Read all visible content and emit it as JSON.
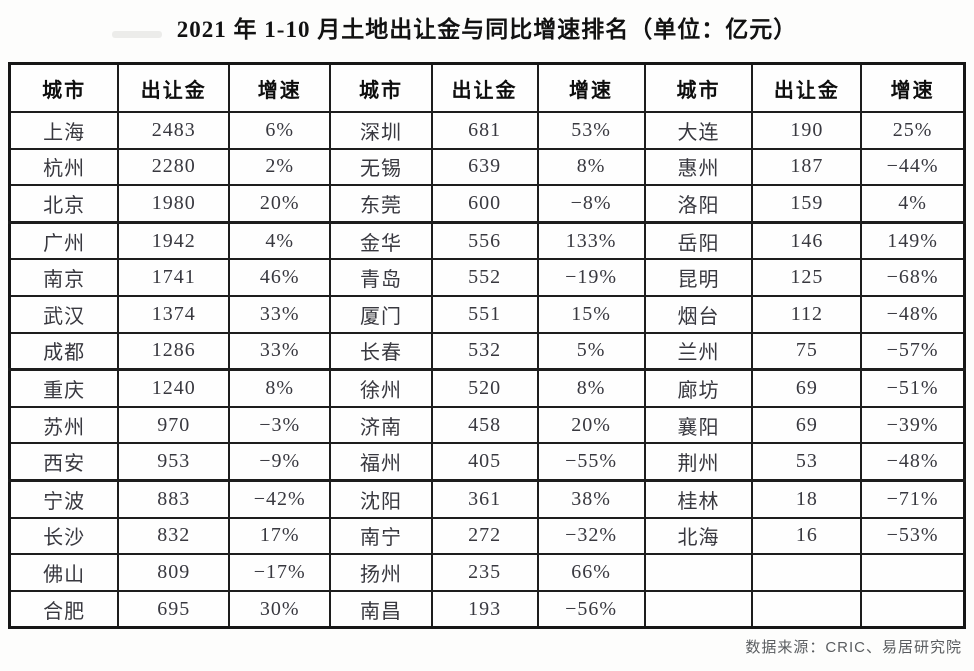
{
  "title": "2021 年 1-10 月土地出让金与同比增速排名（单位：亿元）",
  "source_note": "数据来源：CRIC、易居研究院",
  "table": {
    "headers": [
      "城市",
      "出让金",
      "增速",
      "城市",
      "出让金",
      "增速",
      "城市",
      "出让金",
      "增速"
    ],
    "rows": [
      [
        "上海",
        "2483",
        "6%",
        "深圳",
        "681",
        "53%",
        "大连",
        "190",
        "25%"
      ],
      [
        "杭州",
        "2280",
        "2%",
        "无锡",
        "639",
        "8%",
        "惠州",
        "187",
        "−44%"
      ],
      [
        "北京",
        "1980",
        "20%",
        "东莞",
        "600",
        "−8%",
        "洛阳",
        "159",
        "4%"
      ],
      [
        "广州",
        "1942",
        "4%",
        "金华",
        "556",
        "133%",
        "岳阳",
        "146",
        "149%"
      ],
      [
        "南京",
        "1741",
        "46%",
        "青岛",
        "552",
        "−19%",
        "昆明",
        "125",
        "−68%"
      ],
      [
        "武汉",
        "1374",
        "33%",
        "厦门",
        "551",
        "15%",
        "烟台",
        "112",
        "−48%"
      ],
      [
        "成都",
        "1286",
        "33%",
        "长春",
        "532",
        "5%",
        "兰州",
        "75",
        "−57%"
      ],
      [
        "重庆",
        "1240",
        "8%",
        "徐州",
        "520",
        "8%",
        "廊坊",
        "69",
        "−51%"
      ],
      [
        "苏州",
        "970",
        "−3%",
        "济南",
        "458",
        "20%",
        "襄阳",
        "69",
        "−39%"
      ],
      [
        "西安",
        "953",
        "−9%",
        "福州",
        "405",
        "−55%",
        "荆州",
        "53",
        "−48%"
      ],
      [
        "宁波",
        "883",
        "−42%",
        "沈阳",
        "361",
        "38%",
        "桂林",
        "18",
        "−71%"
      ],
      [
        "长沙",
        "832",
        "17%",
        "南宁",
        "272",
        "−32%",
        "北海",
        "16",
        "−53%"
      ],
      [
        "佛山",
        "809",
        "−17%",
        "扬州",
        "235",
        "66%",
        "",
        "",
        ""
      ],
      [
        "合肥",
        "695",
        "30%",
        "南昌",
        "193",
        "−56%",
        "",
        "",
        ""
      ]
    ]
  }
}
